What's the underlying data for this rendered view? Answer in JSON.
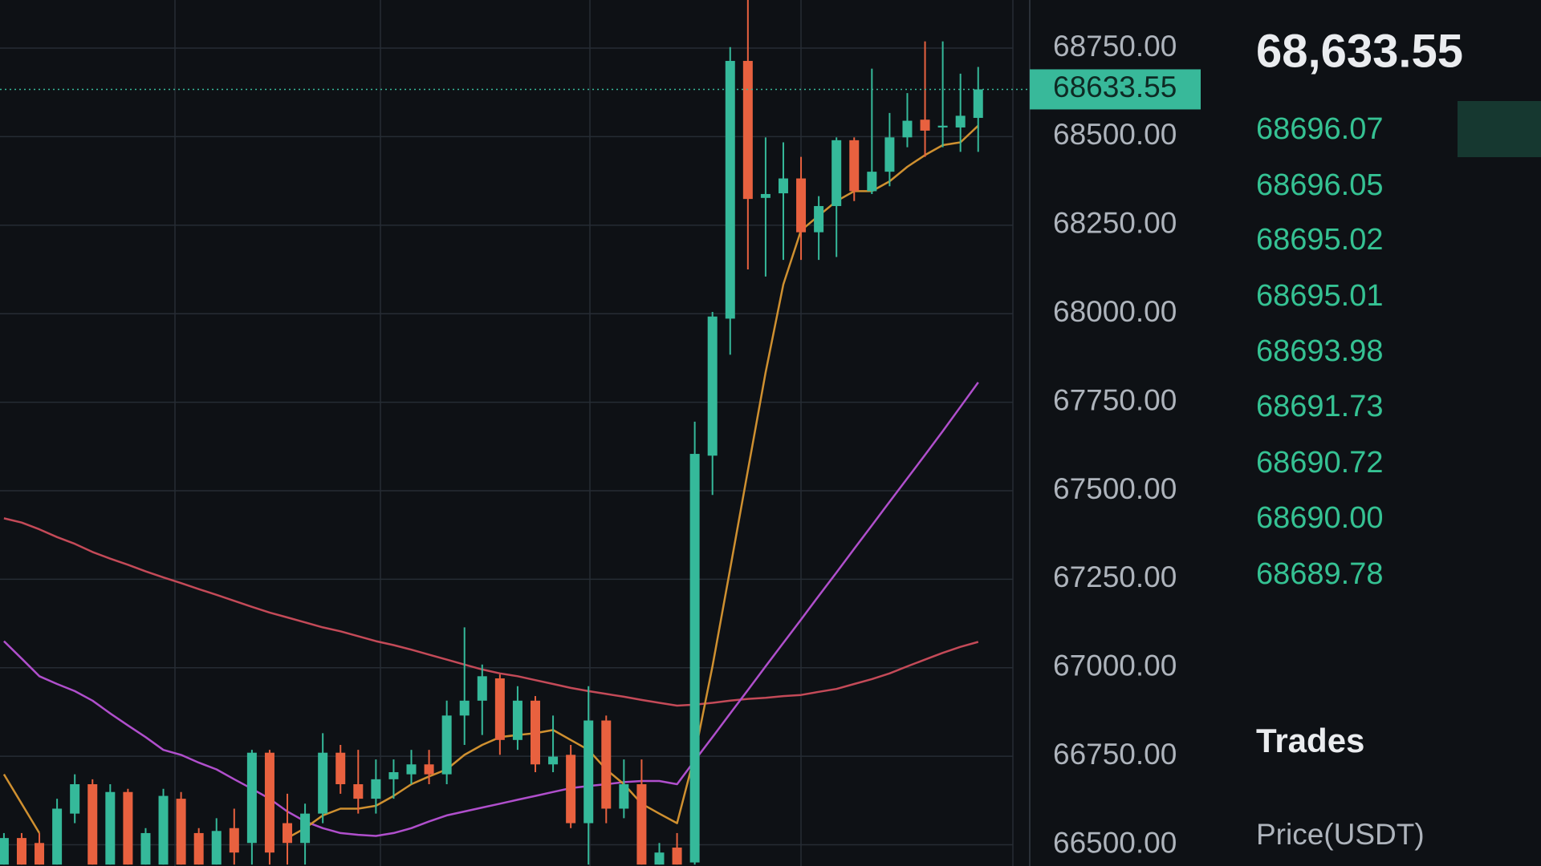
{
  "chart_data": {
    "type": "candlestick",
    "ylim": [
      66440,
      68886
    ],
    "yticks": [
      {
        "value": 68750,
        "label": "68750.00"
      },
      {
        "value": 68500,
        "label": "68500.00"
      },
      {
        "value": 68250,
        "label": "68250.00"
      },
      {
        "value": 68000,
        "label": "68000.00"
      },
      {
        "value": 67750,
        "label": "67750.00"
      },
      {
        "value": 67500,
        "label": "67500.00"
      },
      {
        "value": 67250,
        "label": "67250.00"
      },
      {
        "value": 67000,
        "label": "67000.00"
      },
      {
        "value": 66750,
        "label": "66750.00"
      },
      {
        "value": 66500,
        "label": "66500.00"
      }
    ],
    "grid": true,
    "up_color": "#35b99a",
    "down_color": "#e8613f",
    "open": [
      66444,
      66519,
      66505,
      66444,
      66588,
      66671,
      66444,
      66649,
      66444,
      66444,
      66630,
      66533,
      66444,
      66547,
      66505,
      66760,
      66561,
      66505,
      66588,
      66760,
      66671,
      66630,
      66685,
      66699,
      66727,
      66699,
      66865,
      66907,
      66970,
      66796,
      66907,
      66727,
      66754,
      66561,
      66851,
      66602,
      66671,
      66444,
      66492,
      66450,
      67599,
      67986,
      68714,
      68327,
      68340,
      68382,
      68230,
      68304,
      68490,
      68346,
      68401,
      68498,
      68548,
      68526,
      68526,
      68553
    ],
    "high": [
      66533,
      66533,
      66533,
      66630,
      66699,
      66685,
      66671,
      66658,
      66547,
      66658,
      66649,
      66547,
      66575,
      66602,
      66768,
      66768,
      66644,
      66616,
      66815,
      66782,
      66768,
      66741,
      66741,
      66768,
      66768,
      66907,
      67114,
      67009,
      66981,
      66948,
      66920,
      66865,
      66782,
      66948,
      66865,
      66741,
      66741,
      66505,
      66533,
      67695,
      68005,
      68753,
      68886,
      68498,
      68484,
      68443,
      68332,
      68498,
      68498,
      68692,
      68567,
      68623,
      68769,
      68769,
      68678,
      68697
    ],
    "low": [
      66444,
      66444,
      66444,
      66444,
      66561,
      66444,
      66444,
      66444,
      66444,
      66444,
      66444,
      66444,
      66444,
      66444,
      66444,
      66444,
      66444,
      66444,
      66561,
      66644,
      66588,
      66588,
      66630,
      66671,
      66671,
      66671,
      66782,
      66810,
      66754,
      66768,
      66705,
      66705,
      66547,
      66444,
      66561,
      66575,
      66444,
      66444,
      66444,
      66444,
      67488,
      67884,
      68125,
      68105,
      68152,
      68152,
      68152,
      68160,
      68318,
      68338,
      68360,
      68470,
      68443,
      68470,
      68457,
      68457
    ],
    "close": [
      66519,
      66444,
      66444,
      66602,
      66671,
      66444,
      66649,
      66444,
      66533,
      66638,
      66444,
      66444,
      66539,
      66478,
      66760,
      66478,
      66505,
      66588,
      66760,
      66671,
      66630,
      66685,
      66705,
      66727,
      66699,
      66865,
      66907,
      66976,
      66796,
      66907,
      66727,
      66749,
      66561,
      66851,
      66602,
      66671,
      66444,
      66478,
      66444,
      67604,
      67992,
      68714,
      68324,
      68338,
      68382,
      68230,
      68304,
      68490,
      68346,
      68401,
      68498,
      68545,
      68517,
      68531,
      68559,
      68633.55
    ],
    "lines": [
      {
        "color": "#c44a58",
        "values": [
          67422,
          67410,
          67391,
          67369,
          67350,
          67327,
          67308,
          67291,
          67272,
          67255,
          67239,
          67222,
          67206,
          67189,
          67172,
          67156,
          67142,
          67128,
          67114,
          67103,
          67089,
          67075,
          67064,
          67051,
          67037,
          67023,
          67009,
          66995,
          66984,
          66976,
          66965,
          66954,
          66943,
          66934,
          66926,
          66918,
          66909,
          66901,
          66893,
          66896,
          66901,
          66907,
          66912,
          66915,
          66920,
          66923,
          66932,
          66940,
          66954,
          66968,
          66984,
          67004,
          67023,
          67042,
          67059,
          67073
        ]
      },
      {
        "color": "#b04fcc",
        "values": [
          67075,
          67026,
          66976,
          66954,
          66934,
          66907,
          66871,
          66837,
          66804,
          66768,
          66754,
          66732,
          66713,
          66685,
          66658,
          66630,
          66594,
          66566,
          66547,
          66533,
          66528,
          66525,
          66533,
          66547,
          66566,
          66583,
          66594,
          66605,
          66616,
          66627,
          66638,
          66649,
          66660,
          66666,
          66671,
          66677,
          66680,
          66680,
          66671,
          66738,
          66804,
          66871,
          66937,
          67004,
          67070,
          67136,
          67203,
          67269,
          67336,
          67402,
          67469,
          67535,
          67601,
          67668,
          67737,
          67806
        ]
      },
      {
        "color": "#cf9030",
        "values": [
          66699,
          66616,
          66533,
          null,
          null,
          null,
          null,
          null,
          null,
          null,
          null,
          null,
          null,
          null,
          null,
          null,
          66519,
          66547,
          66583,
          66602,
          66602,
          66610,
          66638,
          66671,
          66693,
          66713,
          66754,
          66782,
          66804,
          66810,
          66815,
          66824,
          66796,
          66768,
          66713,
          66671,
          66616,
          66588,
          66561,
          66754,
          67004,
          67280,
          67557,
          67834,
          68083,
          68235,
          68277,
          68318,
          68346,
          68346,
          68374,
          68415,
          68448,
          68476,
          68484,
          68531
        ]
      }
    ],
    "last_price": {
      "value": 68633.55,
      "label": "68633.55"
    },
    "last_price_color": "#38b99a"
  },
  "sidebar": {
    "price": "68,633.55",
    "recent_prices": [
      "68696.07",
      "68696.05",
      "68695.02",
      "68695.01",
      "68693.98",
      "68691.73",
      "68690.72",
      "68690.00",
      "68689.78"
    ],
    "trades_title": "Trades",
    "price_header": "Price(USDT)"
  }
}
